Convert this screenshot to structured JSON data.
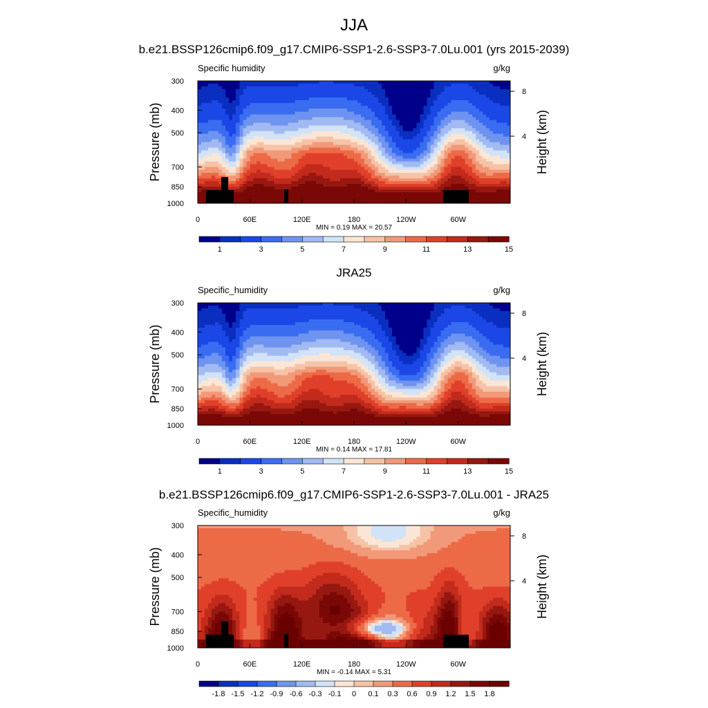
{
  "figure_title": "JJA",
  "chart_data": [
    {
      "type": "heatmap",
      "title": "b.e21.BSSP126cmip6.f09_g17.CMIP6-SSP1-2.6-SSP3-7.0Lu.001 (yrs 2015-2039)",
      "variable": "Specific humidity",
      "units": "g/kg",
      "ylabel": "Pressure (mb)",
      "ylabel_right": "Height (km)",
      "x_ticks": [
        "0",
        "60E",
        "120E",
        "180",
        "120W",
        "60W"
      ],
      "y_ticks": [
        "300",
        "400",
        "500",
        "700",
        "850",
        "1000"
      ],
      "height_ticks": [
        "8",
        "4"
      ],
      "stats": "MIN =   0.19  MAX =  20.57",
      "colorbar_labels": [
        "1",
        "3",
        "5",
        "7",
        "9",
        "11",
        "13",
        "15"
      ],
      "colorbar_colors": [
        "#00008b",
        "#0a2fc0",
        "#1a47e6",
        "#3a6cf2",
        "#6e93f0",
        "#a2baf2",
        "#d2e3f7",
        "#fbe6d6",
        "#f6c3a6",
        "#f2997a",
        "#ed6a47",
        "#e0402a",
        "#c22a1c",
        "#961810",
        "#7a0806"
      ],
      "levels": [
        0.5,
        1,
        2,
        3,
        4,
        5,
        6,
        7,
        8,
        9,
        10,
        11,
        12,
        13,
        14,
        15
      ]
    },
    {
      "type": "heatmap",
      "title": "JRA25",
      "variable": "Specific_humidity",
      "units": "g/kg",
      "ylabel": "Pressure (mb)",
      "ylabel_right": "Height (km)",
      "x_ticks": [
        "0",
        "60E",
        "120E",
        "180",
        "120W",
        "60W"
      ],
      "y_ticks": [
        "300",
        "400",
        "500",
        "700",
        "850",
        "1000"
      ],
      "height_ticks": [
        "8",
        "4"
      ],
      "stats": "MIN =   0.14  MAX =  17.81",
      "colorbar_labels": [
        "1",
        "3",
        "5",
        "7",
        "9",
        "11",
        "13",
        "15"
      ],
      "colorbar_colors": [
        "#00008b",
        "#0a2fc0",
        "#1a47e6",
        "#3a6cf2",
        "#6e93f0",
        "#a2baf2",
        "#d2e3f7",
        "#fbe6d6",
        "#f6c3a6",
        "#f2997a",
        "#ed6a47",
        "#e0402a",
        "#c22a1c",
        "#961810",
        "#7a0806"
      ],
      "levels": [
        0.5,
        1,
        2,
        3,
        4,
        5,
        6,
        7,
        8,
        9,
        10,
        11,
        12,
        13,
        14,
        15
      ]
    },
    {
      "type": "heatmap",
      "title": "b.e21.BSSP126cmip6.f09_g17.CMIP6-SSP1-2.6-SSP3-7.0Lu.001 - JRA25",
      "variable": "Specific_humidity",
      "units": "g/kg",
      "ylabel": "Pressure (mb)",
      "ylabel_right": "Height (km)",
      "x_ticks": [
        "0",
        "60E",
        "120E",
        "180",
        "120W",
        "60W"
      ],
      "y_ticks": [
        "300",
        "400",
        "500",
        "700",
        "850",
        "1000"
      ],
      "height_ticks": [
        "8",
        "4"
      ],
      "stats": "MIN =  -0.14  MAX =   5.31",
      "colorbar_labels": [
        "-1.8",
        "-1.5",
        "-1.2",
        "-0.9",
        "-0.6",
        "-0.3",
        "-0.1",
        "0",
        "0.1",
        "0.3",
        "0.6",
        "0.9",
        "1.2",
        "1.5",
        "1.8"
      ],
      "colorbar_colors": [
        "#00008b",
        "#0a2fc0",
        "#1a47e6",
        "#3a6cf2",
        "#6e93f0",
        "#a2baf2",
        "#d2e3f7",
        "#fbe6d6",
        "#f6c3a6",
        "#f2997a",
        "#ed6a47",
        "#e0402a",
        "#c22a1c",
        "#961810",
        "#7a0806",
        "#6a0000"
      ],
      "levels": [
        -1.8,
        -1.5,
        -1.2,
        -0.9,
        -0.6,
        -0.3,
        -0.1,
        0,
        0.1,
        0.3,
        0.6,
        0.9,
        1.2,
        1.5,
        1.8
      ]
    }
  ]
}
